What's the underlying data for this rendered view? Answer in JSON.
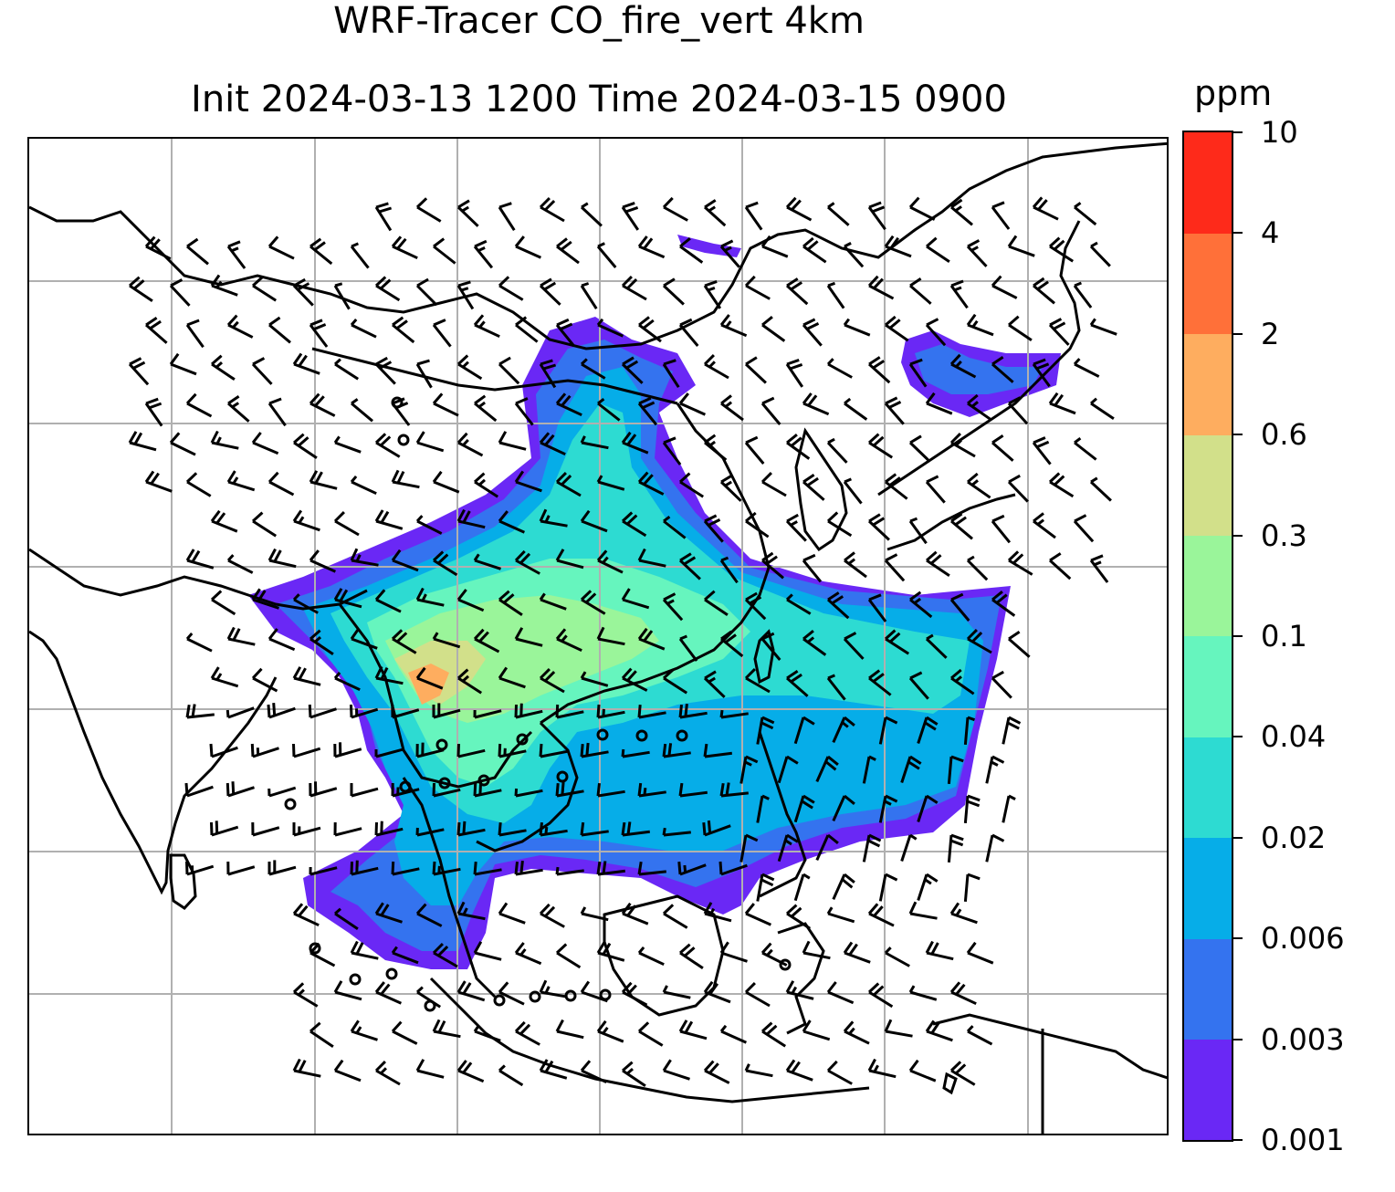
{
  "title": {
    "line1": "WRF-Tracer CO_fire_vert 4km",
    "line2": "Init 2024-03-13 1200 Time 2024-03-15 0900"
  },
  "colorbar": {
    "unit": "ppm",
    "levels": [
      "0.001",
      "0.003",
      "0.006",
      "0.02",
      "0.04",
      "0.1",
      "0.3",
      "0.6",
      "2",
      "4",
      "10"
    ],
    "colors": [
      "#6a28f5",
      "#3473ef",
      "#06ade8",
      "#2ddbd2",
      "#66f5be",
      "#9af59a",
      "#d2e08a",
      "#fead5f",
      "#ff7039",
      "#fe2a1a"
    ]
  },
  "map": {
    "gridline_color": "#b0b0b0",
    "coastline_color": "#000000",
    "wind_barb_color": "#000000"
  }
}
